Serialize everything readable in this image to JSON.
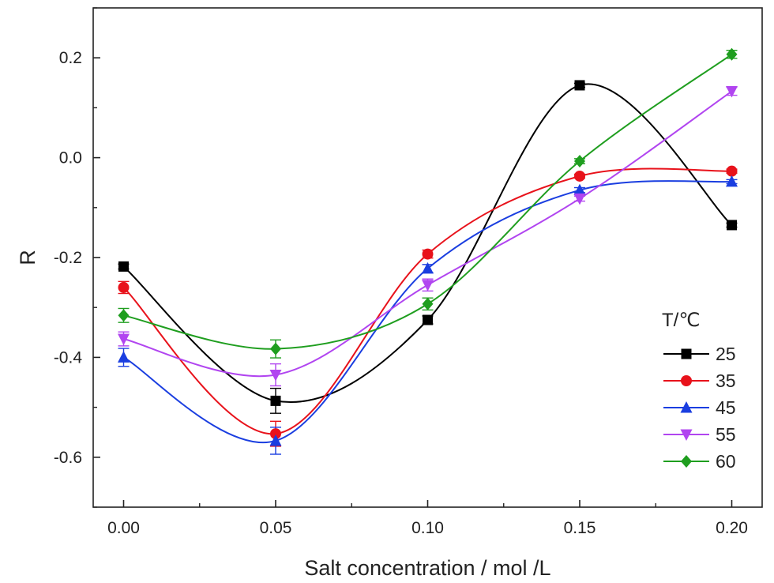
{
  "chart_data": {
    "type": "line",
    "title": "",
    "xlabel": "Salt concentration / mol /L",
    "ylabel": "R",
    "xlim": [
      -0.01,
      0.21
    ],
    "ylim": [
      -0.7,
      0.3
    ],
    "x_ticks": [
      0.0,
      0.05,
      0.1,
      0.15,
      0.2
    ],
    "x_tick_labels": [
      "0.00",
      "0.05",
      "0.10",
      "0.15",
      "0.20"
    ],
    "y_ticks": [
      -0.6,
      -0.4,
      -0.2,
      0.0,
      0.2
    ],
    "y_tick_labels": [
      "-0.6",
      "-0.4",
      "-0.2",
      "0.0",
      "0.2"
    ],
    "grid": false,
    "legend": {
      "title": "T/℃",
      "placement": "right-middle"
    },
    "x": [
      0.0,
      0.05,
      0.1,
      0.15,
      0.2
    ],
    "series": [
      {
        "name": "25",
        "color": "#000000",
        "marker": "square",
        "values": [
          -0.218,
          -0.487,
          -0.325,
          0.145,
          -0.135
        ],
        "errors": [
          0.005,
          0.025,
          0.008,
          0.004,
          0.004
        ]
      },
      {
        "name": "35",
        "color": "#e8121b",
        "marker": "circle",
        "values": [
          -0.26,
          -0.553,
          -0.193,
          -0.037,
          -0.027
        ],
        "errors": [
          0.012,
          0.025,
          0.008,
          0.004,
          0.004
        ]
      },
      {
        "name": "45",
        "color": "#1a3ee0",
        "marker": "triangle-up",
        "values": [
          -0.4,
          -0.567,
          -0.222,
          -0.065,
          -0.048
        ],
        "errors": [
          0.018,
          0.027,
          0.008,
          0.005,
          0.004
        ]
      },
      {
        "name": "55",
        "color": "#b145f0",
        "marker": "triangle-down",
        "values": [
          -0.363,
          -0.435,
          -0.255,
          -0.082,
          0.133
        ],
        "errors": [
          0.014,
          0.022,
          0.012,
          0.005,
          0.008
        ]
      },
      {
        "name": "60",
        "color": "#1f9e1f",
        "marker": "diamond",
        "values": [
          -0.316,
          -0.383,
          -0.293,
          -0.007,
          0.207
        ],
        "errors": [
          0.014,
          0.018,
          0.012,
          0.005,
          0.008
        ]
      }
    ]
  }
}
